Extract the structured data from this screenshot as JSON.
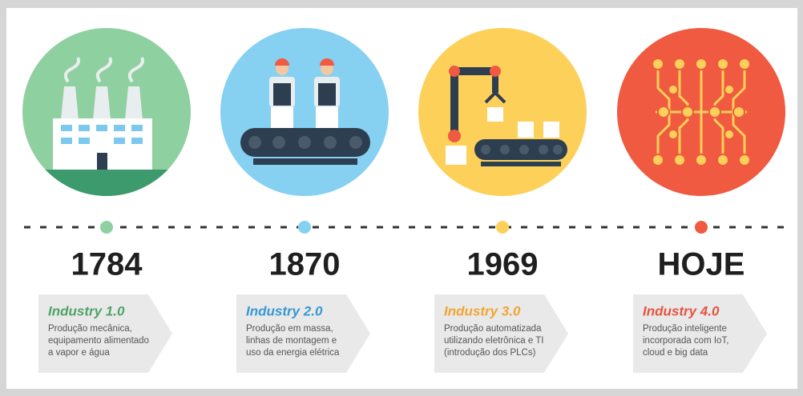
{
  "items": [
    {
      "year": "1784",
      "title": "Industry 1.0",
      "color": "#4fa36a",
      "dot": "#8fd0a0",
      "description": [
        "Produção mecânica,",
        "equipamento alimentado",
        "a vapor e água"
      ]
    },
    {
      "year": "1870",
      "title": "Industry 2.0",
      "color": "#3798d4",
      "dot": "#86d0f2",
      "description": [
        "Produção em massa,",
        "linhas de montagem e",
        "uso da energia elétrica"
      ]
    },
    {
      "year": "1969",
      "title": "Industry 3.0",
      "color": "#f2a531",
      "dot": "#fdd05a",
      "description": [
        "Produção automatizada",
        "utilizando eletrônica e TI",
        "(introdução dos PLCs)"
      ]
    },
    {
      "year": "HOJE",
      "title": "Industry 4.0",
      "color": "#e6533d",
      "dot": "#ef5a40",
      "description": [
        "Produção inteligente",
        "incorporada com IoT,",
        "cloud e big data"
      ]
    }
  ]
}
